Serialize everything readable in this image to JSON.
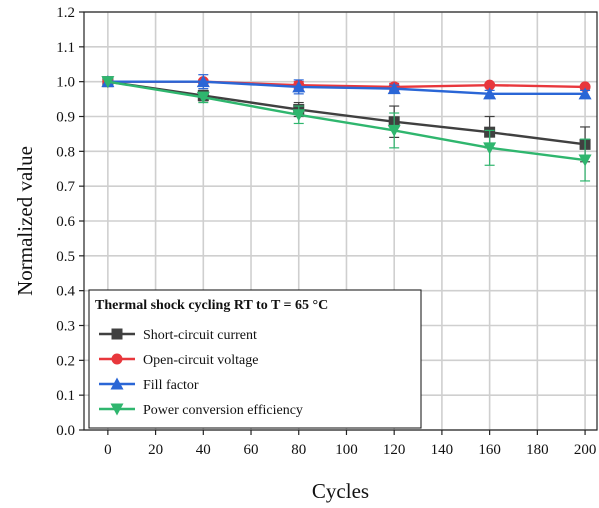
{
  "chart_data": {
    "type": "line",
    "xlabel": "Cycles",
    "ylabel": "Normalized value",
    "xlim": [
      -10,
      205
    ],
    "ylim": [
      0.0,
      1.2
    ],
    "x_ticks": [
      0,
      20,
      40,
      60,
      80,
      100,
      120,
      140,
      160,
      180,
      200
    ],
    "y_ticks": [
      0.0,
      0.1,
      0.2,
      0.3,
      0.4,
      0.5,
      0.6,
      0.7,
      0.8,
      0.9,
      1.0,
      1.1,
      1.2
    ],
    "grid": true,
    "legend": {
      "title": "Thermal shock cycling RT to T = 65 °C",
      "placement": "bottom-left"
    },
    "x": [
      0,
      40,
      80,
      120,
      160,
      200
    ],
    "series": [
      {
        "name": "Short-circuit current",
        "color": "#404040",
        "marker": "square",
        "values": [
          1.0,
          0.96,
          0.92,
          0.885,
          0.855,
          0.82
        ],
        "errors": [
          0.0,
          0.015,
          0.02,
          0.045,
          0.045,
          0.05
        ]
      },
      {
        "name": "Open-circuit voltage",
        "color": "#e8373c",
        "marker": "circle",
        "values": [
          1.0,
          1.0,
          0.99,
          0.985,
          0.99,
          0.985
        ],
        "errors": [
          0.0,
          0.005,
          0.01,
          0.01,
          0.005,
          0.005
        ]
      },
      {
        "name": "Fill factor",
        "color": "#2a66d6",
        "marker": "triangle-up",
        "values": [
          1.0,
          1.0,
          0.985,
          0.98,
          0.965,
          0.965
        ],
        "errors": [
          0.0,
          0.02,
          0.02,
          0.01,
          0.01,
          0.01
        ]
      },
      {
        "name": "Power conversion efficiency",
        "color": "#2fb66e",
        "marker": "triangle-down",
        "values": [
          1.0,
          0.955,
          0.905,
          0.86,
          0.81,
          0.775
        ],
        "errors": [
          0.0,
          0.015,
          0.025,
          0.05,
          0.05,
          0.06
        ]
      }
    ]
  }
}
